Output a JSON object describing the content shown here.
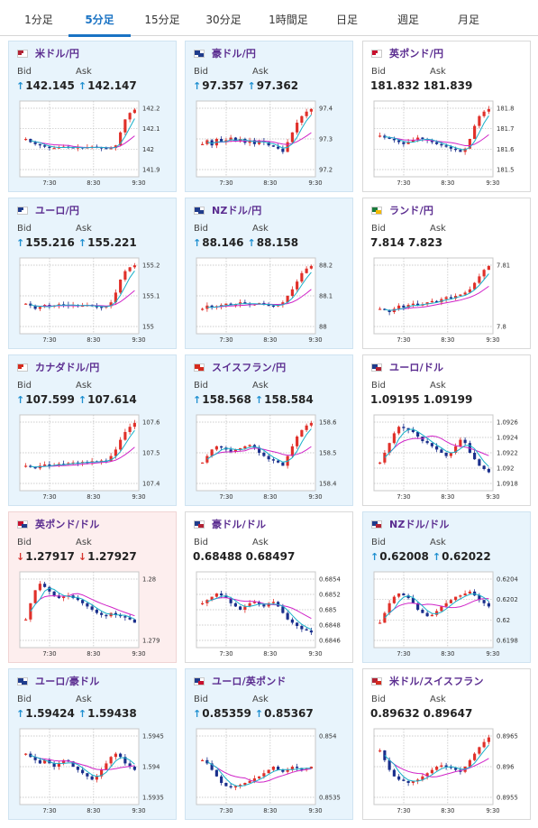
{
  "tabs": [
    {
      "label": "1分足",
      "active": false
    },
    {
      "label": "5分足",
      "active": true
    },
    {
      "label": "15分足",
      "active": false
    },
    {
      "label": "30分足",
      "active": false
    },
    {
      "label": "1時間足",
      "active": false
    },
    {
      "label": "日足",
      "active": false
    },
    {
      "label": "週足",
      "active": false
    },
    {
      "label": "月足",
      "active": false
    }
  ],
  "colors": {
    "bullish_candle": "#e0302a",
    "bearish_candle": "#1a2f8c",
    "ma_short": "#19b0c9",
    "ma_long": "#d024c8",
    "up_arrow": "#1e8fd0",
    "down_arrow": "#d6322d",
    "pair_name": "#5b2d90",
    "active_tab": "#1a73c4"
  },
  "labels": {
    "bid": "Bid",
    "ask": "Ask"
  },
  "cards": [
    {
      "pair": "米ドル/円",
      "flag": "us",
      "state": "up",
      "bid": "142.145",
      "ask": "142.147",
      "bid_dir": "up",
      "ask_dir": "up",
      "chart_data": {
        "type": "candlestick",
        "x_ticks": [
          "7:30",
          "8:30",
          "9:30"
        ],
        "y_ticks": [
          "142.2",
          "142.1",
          "142",
          "141.9"
        ],
        "trend": [
          0.5,
          0.45,
          0.42,
          0.4,
          0.38,
          0.36,
          0.36,
          0.37,
          0.38,
          0.37,
          0.36,
          0.37,
          0.36,
          0.37,
          0.38,
          0.37,
          0.36,
          0.35,
          0.36,
          0.4,
          0.6,
          0.8,
          0.9,
          0.95
        ],
        "ma_short": true,
        "ma_long": true
      }
    },
    {
      "pair": "豪ドル/円",
      "flag": "au",
      "state": "up",
      "bid": "97.357",
      "ask": "97.362",
      "bid_dir": "up",
      "ask_dir": "up",
      "chart_data": {
        "type": "candlestick",
        "x_ticks": [
          "7:30",
          "8:30",
          "9:30"
        ],
        "y_ticks": [
          "97.4",
          "97.3",
          "97.2"
        ],
        "trend": [
          0.42,
          0.48,
          0.4,
          0.5,
          0.45,
          0.48,
          0.52,
          0.46,
          0.5,
          0.44,
          0.48,
          0.42,
          0.47,
          0.45,
          0.4,
          0.38,
          0.35,
          0.3,
          0.45,
          0.6,
          0.75,
          0.85,
          0.92,
          0.96
        ],
        "ma_short": true,
        "ma_long": true
      }
    },
    {
      "pair": "英ポンド/円",
      "flag": "uk",
      "state": "neutral",
      "bid": "181.832",
      "ask": "181.839",
      "bid_dir": "none",
      "ask_dir": "none",
      "chart_data": {
        "type": "candlestick",
        "x_ticks": [
          "7:30",
          "8:30",
          "9:30"
        ],
        "y_ticks": [
          "181.8",
          "181.7",
          "181.6",
          "181.5"
        ],
        "trend": [
          0.55,
          0.52,
          0.5,
          0.48,
          0.45,
          0.42,
          0.45,
          0.48,
          0.52,
          0.5,
          0.48,
          0.45,
          0.42,
          0.4,
          0.38,
          0.35,
          0.33,
          0.3,
          0.35,
          0.5,
          0.7,
          0.85,
          0.92,
          0.96
        ],
        "ma_short": true,
        "ma_long": true
      }
    },
    {
      "pair": "ユーロ/円",
      "flag": "eu",
      "state": "up",
      "bid": "155.216",
      "ask": "155.221",
      "bid_dir": "up",
      "ask_dir": "up",
      "chart_data": {
        "type": "candlestick",
        "x_ticks": [
          "7:30",
          "8:30",
          "9:30"
        ],
        "y_ticks": [
          "155.2",
          "155.1",
          "155"
        ],
        "trend": [
          0.38,
          0.35,
          0.3,
          0.33,
          0.36,
          0.34,
          0.35,
          0.37,
          0.36,
          0.35,
          0.36,
          0.34,
          0.35,
          0.36,
          0.34,
          0.33,
          0.32,
          0.34,
          0.4,
          0.55,
          0.75,
          0.88,
          0.94,
          0.97
        ],
        "ma_short": true,
        "ma_long": true
      }
    },
    {
      "pair": "NZドル/円",
      "flag": "nz",
      "state": "up",
      "bid": "88.146",
      "ask": "88.158",
      "bid_dir": "up",
      "ask_dir": "up",
      "chart_data": {
        "type": "candlestick",
        "x_ticks": [
          "7:30",
          "8:30",
          "9:30"
        ],
        "y_ticks": [
          "88.2",
          "88.1",
          "88"
        ],
        "trend": [
          0.3,
          0.35,
          0.32,
          0.34,
          0.36,
          0.38,
          0.36,
          0.37,
          0.4,
          0.38,
          0.36,
          0.37,
          0.39,
          0.36,
          0.35,
          0.34,
          0.36,
          0.4,
          0.5,
          0.6,
          0.72,
          0.85,
          0.92,
          0.96
        ],
        "ma_short": true,
        "ma_long": true
      }
    },
    {
      "pair": "ランド/円",
      "flag": "za",
      "state": "neutral",
      "bid": "7.814",
      "ask": "7.823",
      "bid_dir": "none",
      "ask_dir": "none",
      "chart_data": {
        "type": "candlestick",
        "x_ticks": [
          "7:30",
          "8:30",
          "9:30"
        ],
        "y_ticks": [
          "7.81",
          "7.8"
        ],
        "trend": [
          0.3,
          0.28,
          0.25,
          0.3,
          0.35,
          0.32,
          0.36,
          0.38,
          0.35,
          0.37,
          0.4,
          0.42,
          0.4,
          0.45,
          0.48,
          0.46,
          0.5,
          0.52,
          0.55,
          0.6,
          0.7,
          0.8,
          0.9,
          0.96
        ],
        "ma_short": true,
        "ma_long": true
      }
    },
    {
      "pair": "カナダドル/円",
      "flag": "ca",
      "state": "up",
      "bid": "107.599",
      "ask": "107.614",
      "bid_dir": "up",
      "ask_dir": "up",
      "chart_data": {
        "type": "candlestick",
        "x_ticks": [
          "7:30",
          "8:30",
          "9:30"
        ],
        "y_ticks": [
          "107.6",
          "107.5",
          "107.4"
        ],
        "trend": [
          0.3,
          0.28,
          0.26,
          0.3,
          0.32,
          0.3,
          0.31,
          0.33,
          0.32,
          0.34,
          0.35,
          0.34,
          0.36,
          0.35,
          0.37,
          0.36,
          0.38,
          0.37,
          0.45,
          0.55,
          0.7,
          0.82,
          0.9,
          0.96
        ],
        "ma_short": true,
        "ma_long": true
      }
    },
    {
      "pair": "スイスフラン/円",
      "flag": "ch",
      "state": "up",
      "bid": "158.568",
      "ask": "158.584",
      "bid_dir": "up",
      "ask_dir": "up",
      "chart_data": {
        "type": "candlestick",
        "x_ticks": [
          "7:30",
          "8:30",
          "9:30"
        ],
        "y_ticks": [
          "158.6",
          "158.5",
          "158.4"
        ],
        "trend": [
          0.35,
          0.45,
          0.55,
          0.6,
          0.58,
          0.55,
          0.52,
          0.55,
          0.57,
          0.6,
          0.62,
          0.58,
          0.5,
          0.45,
          0.4,
          0.38,
          0.35,
          0.3,
          0.45,
          0.6,
          0.75,
          0.85,
          0.92,
          0.96
        ],
        "ma_short": true,
        "ma_long": true
      }
    },
    {
      "pair": "ユーロ/ドル",
      "flag": "eu-us",
      "state": "neutral",
      "bid": "1.09195",
      "ask": "1.09199",
      "bid_dir": "none",
      "ask_dir": "none",
      "chart_data": {
        "type": "candlestick",
        "x_ticks": [
          "7:30",
          "8:30",
          "9:30"
        ],
        "y_ticks": [
          "1.0926",
          "1.0924",
          "1.0922",
          "1.092",
          "1.0918"
        ],
        "trend": [
          0.35,
          0.5,
          0.65,
          0.8,
          0.9,
          0.88,
          0.85,
          0.82,
          0.75,
          0.68,
          0.65,
          0.6,
          0.55,
          0.5,
          0.45,
          0.5,
          0.6,
          0.7,
          0.65,
          0.5,
          0.4,
          0.3,
          0.25,
          0.2
        ],
        "ma_short": true,
        "ma_long": true
      }
    },
    {
      "pair": "英ポンド/ドル",
      "flag": "uk-us",
      "state": "down",
      "bid": "1.27917",
      "ask": "1.27927",
      "bid_dir": "down",
      "ask_dir": "down",
      "chart_data": {
        "type": "candlestick",
        "x_ticks": [
          "7:30",
          "8:30",
          "9:30"
        ],
        "y_ticks": [
          "1.28",
          "1.279"
        ],
        "trend": [
          0.35,
          0.6,
          0.8,
          0.9,
          0.85,
          0.78,
          0.72,
          0.68,
          0.7,
          0.72,
          0.68,
          0.65,
          0.6,
          0.55,
          0.5,
          0.45,
          0.42,
          0.4,
          0.45,
          0.42,
          0.4,
          0.38,
          0.35,
          0.3
        ],
        "ma_short": true,
        "ma_long": true
      }
    },
    {
      "pair": "豪ドル/ドル",
      "flag": "au-us",
      "state": "neutral",
      "bid": "0.68488",
      "ask": "0.68497",
      "bid_dir": "none",
      "ask_dir": "none",
      "chart_data": {
        "type": "candlestick",
        "x_ticks": [
          "7:30",
          "8:30",
          "9:30"
        ],
        "y_ticks": [
          "0.6854",
          "0.6852",
          "0.685",
          "0.6848",
          "0.6846"
        ],
        "trend": [
          0.6,
          0.65,
          0.7,
          0.75,
          0.72,
          0.68,
          0.6,
          0.55,
          0.5,
          0.55,
          0.6,
          0.62,
          0.58,
          0.55,
          0.6,
          0.62,
          0.55,
          0.45,
          0.35,
          0.3,
          0.25,
          0.2,
          0.18,
          0.15
        ],
        "ma_short": true,
        "ma_long": true
      }
    },
    {
      "pair": "NZドル/ドル",
      "flag": "nz-us",
      "state": "up",
      "bid": "0.62008",
      "ask": "0.62022",
      "bid_dir": "up",
      "ask_dir": "up",
      "chart_data": {
        "type": "candlestick",
        "x_ticks": [
          "7:30",
          "8:30",
          "9:30"
        ],
        "y_ticks": [
          "0.6204",
          "0.6202",
          "0.62",
          "0.6198"
        ],
        "trend": [
          0.3,
          0.45,
          0.6,
          0.7,
          0.75,
          0.72,
          0.68,
          0.6,
          0.5,
          0.45,
          0.4,
          0.42,
          0.48,
          0.55,
          0.6,
          0.65,
          0.7,
          0.72,
          0.75,
          0.78,
          0.72,
          0.65,
          0.6,
          0.55
        ],
        "ma_short": true,
        "ma_long": true
      }
    },
    {
      "pair": "ユーロ/豪ドル",
      "flag": "eu-au",
      "state": "up",
      "bid": "1.59424",
      "ask": "1.59438",
      "bid_dir": "up",
      "ask_dir": "up",
      "chart_data": {
        "type": "candlestick",
        "x_ticks": [
          "7:30",
          "8:30",
          "9:30"
        ],
        "y_ticks": [
          "1.5945",
          "1.594",
          "1.5935"
        ],
        "trend": [
          0.7,
          0.65,
          0.6,
          0.55,
          0.6,
          0.55,
          0.5,
          0.55,
          0.6,
          0.58,
          0.5,
          0.45,
          0.4,
          0.35,
          0.3,
          0.35,
          0.45,
          0.55,
          0.65,
          0.7,
          0.65,
          0.55,
          0.5,
          0.45
        ],
        "ma_short": true,
        "ma_long": true
      }
    },
    {
      "pair": "ユーロ/英ポンド",
      "flag": "eu-uk",
      "state": "up",
      "bid": "0.85359",
      "ask": "0.85367",
      "bid_dir": "up",
      "ask_dir": "up",
      "chart_data": {
        "type": "candlestick",
        "x_ticks": [
          "7:30",
          "8:30",
          "9:30"
        ],
        "y_ticks": [
          "0.854",
          "0.8535"
        ],
        "trend": [
          0.6,
          0.55,
          0.45,
          0.35,
          0.25,
          0.2,
          0.18,
          0.2,
          0.22,
          0.25,
          0.28,
          0.32,
          0.35,
          0.4,
          0.45,
          0.5,
          0.45,
          0.42,
          0.45,
          0.5,
          0.48,
          0.45,
          0.47,
          0.5
        ],
        "ma_short": true,
        "ma_long": true
      }
    },
    {
      "pair": "米ドル/スイスフラン",
      "flag": "us-ch",
      "state": "neutral",
      "bid": "0.89632",
      "ask": "0.89647",
      "bid_dir": "none",
      "ask_dir": "none",
      "chart_data": {
        "type": "candlestick",
        "x_ticks": [
          "7:30",
          "8:30",
          "9:30"
        ],
        "y_ticks": [
          "0.8965",
          "0.896",
          "0.8955"
        ],
        "trend": [
          0.75,
          0.6,
          0.45,
          0.35,
          0.3,
          0.28,
          0.25,
          0.28,
          0.3,
          0.35,
          0.4,
          0.45,
          0.5,
          0.52,
          0.5,
          0.48,
          0.45,
          0.42,
          0.5,
          0.6,
          0.7,
          0.8,
          0.88,
          0.95
        ],
        "ma_short": true,
        "ma_long": true
      }
    }
  ]
}
